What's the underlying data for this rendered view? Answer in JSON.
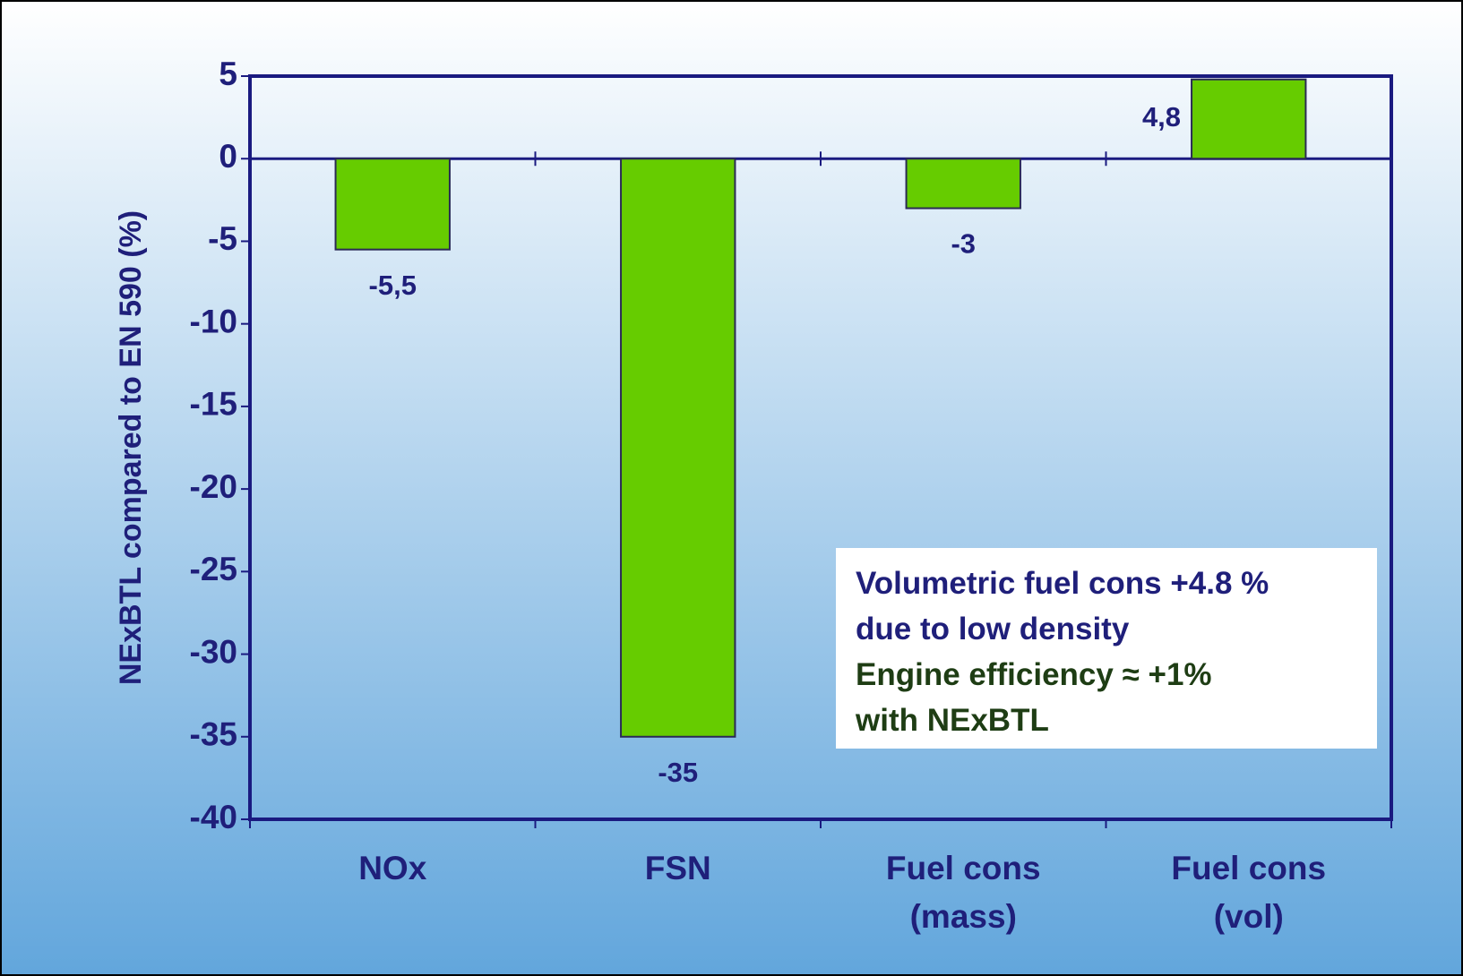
{
  "chart_data": {
    "type": "bar",
    "y_axis_label": "NExBTL compared to EN 590 (%)",
    "categories": [
      "NOx",
      "FSN",
      "Fuel cons (mass)",
      "Fuel cons (vol)"
    ],
    "values": [
      -5.5,
      -35,
      -3,
      4.8
    ],
    "value_labels": [
      "-5,5",
      "-35",
      "-3",
      "4,8"
    ],
    "color": "#66cc00",
    "ylim": [
      -40,
      5
    ],
    "yticks": [
      5,
      0,
      -5,
      -10,
      -15,
      -20,
      -25,
      -30,
      -35,
      -40
    ],
    "annotations": [
      {
        "lines": [
          "Volumetric fuel cons +4.8 %",
          "due to low density"
        ],
        "color": "#1f1f7a"
      },
      {
        "lines": [
          "Engine efficiency ≈ +1%",
          "with NExBTL"
        ],
        "color": "#1e3d14"
      }
    ]
  }
}
